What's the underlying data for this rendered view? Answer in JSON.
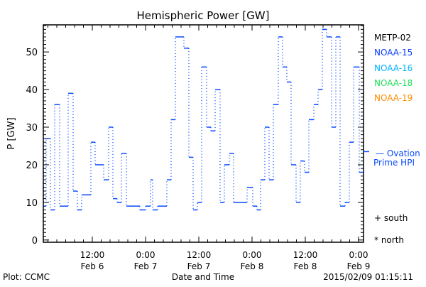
{
  "chart_data": {
    "type": "line",
    "style": "step",
    "title": "Hemispheric Power [GW]",
    "xlabel": "Date and Time",
    "ylabel": "P [GW]",
    "ylim": [
      -0.6,
      57.2
    ],
    "xlim_hours_from_feb6_0000": [
      0.96,
      73.12
    ],
    "yticks": [
      0,
      10,
      20,
      30,
      40,
      50
    ],
    "xticks": [
      {
        "hour": 12,
        "time": "12:00",
        "date": "Feb 6"
      },
      {
        "hour": 24,
        "time": "0:00",
        "date": "Feb 7"
      },
      {
        "hour": 36,
        "time": "12:00",
        "date": "Feb 7"
      },
      {
        "hour": 48,
        "time": "0:00",
        "date": "Feb 8"
      },
      {
        "hour": 60,
        "time": "12:00",
        "date": "Feb 8"
      },
      {
        "hour": 72,
        "time": "0:00",
        "date": "Feb 9"
      }
    ],
    "series": [
      {
        "name": "NOAA-15",
        "color": "#0a4cff",
        "x_hours": [
          0.96,
          1.6,
          2.56,
          3.52,
          4.64,
          6.56,
          7.68,
          8.64,
          9.6,
          11.68,
          12.64,
          14.56,
          15.68,
          16.64,
          17.6,
          18.56,
          19.68,
          22.72,
          24.0,
          25.12,
          25.6,
          26.72,
          28.8,
          29.76,
          30.72,
          32.64,
          33.76,
          34.72,
          35.68,
          36.64,
          37.76,
          38.72,
          39.68,
          40.8,
          41.76,
          42.88,
          43.84,
          46.88,
          48.16,
          49.12,
          49.92,
          50.88,
          51.84,
          52.8,
          53.92,
          54.88,
          55.84,
          56.8,
          57.92,
          58.88,
          59.84,
          60.8,
          61.92,
          62.88,
          63.84,
          64.8,
          65.92,
          66.88,
          67.84,
          68.96,
          69.92,
          70.88,
          72.16
        ],
        "values": [
          9,
          27,
          8,
          36,
          9,
          39,
          13,
          8,
          12,
          26,
          20,
          16,
          30,
          11,
          10,
          23,
          9,
          8,
          9,
          16,
          8,
          9,
          16,
          32,
          54,
          51,
          22,
          8,
          10,
          46,
          30,
          29,
          40,
          10,
          20,
          23,
          10,
          14,
          9,
          8,
          16,
          30,
          16,
          36,
          54,
          46,
          42,
          20,
          10,
          21,
          18,
          32,
          36,
          40,
          56,
          54,
          30,
          54,
          9,
          10,
          26,
          46,
          18
        ],
        "end_hour": 73.12
      }
    ],
    "legend": [
      {
        "label": "METP-02",
        "color": "#000000"
      },
      {
        "label": "NOAA-15",
        "color": "#0a3cff"
      },
      {
        "label": "NOAA-16",
        "color": "#00b4ff"
      },
      {
        "label": "NOAA-18",
        "color": "#22e05a"
      },
      {
        "label": "NOAA-19",
        "color": "#ff8c00"
      }
    ],
    "ovation": {
      "label_line1": "— Ovation",
      "label_line2": "Prime HPI",
      "value": 23.5,
      "color": "#0a4cff"
    },
    "markers": {
      "south": "+ south",
      "north": "* north"
    }
  },
  "footer": {
    "plot_credit": "Plot: CCMC",
    "timestamp": "2015/02/09 01:15:11"
  }
}
